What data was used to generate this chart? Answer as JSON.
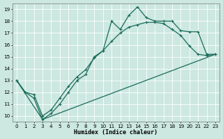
{
  "xlabel": "Humidex (Indice chaleur)",
  "xlim": [
    -0.5,
    23.5
  ],
  "ylim": [
    9.5,
    19.5
  ],
  "xticks": [
    0,
    1,
    2,
    3,
    4,
    5,
    6,
    7,
    8,
    9,
    10,
    11,
    12,
    13,
    14,
    15,
    16,
    17,
    18,
    19,
    20,
    21,
    22,
    23
  ],
  "yticks": [
    10,
    11,
    12,
    13,
    14,
    15,
    16,
    17,
    18,
    19
  ],
  "bg_color": "#cce8e0",
  "grid_color": "#aacccc",
  "line_color": "#1a6b5a",
  "line1_x": [
    0,
    1,
    2,
    3,
    4,
    5,
    6,
    7,
    8,
    9,
    10,
    11,
    12,
    13,
    14,
    15,
    16,
    17,
    18,
    19,
    20,
    21,
    22,
    23
  ],
  "line1_y": [
    13,
    12,
    11.5,
    9.7,
    10.2,
    11,
    12,
    13,
    13.5,
    15,
    15.5,
    18,
    17.3,
    18.5,
    19.2,
    18.3,
    18,
    18,
    18,
    17.2,
    17.1,
    17.1,
    15.2,
    15.2
  ],
  "line2_x": [
    0,
    1,
    2,
    3,
    4,
    5,
    6,
    7,
    8,
    9,
    10,
    11,
    12,
    13,
    14,
    15,
    16,
    17,
    18,
    19,
    20,
    21,
    22,
    23
  ],
  "line2_y": [
    13,
    12,
    11.8,
    10.0,
    10.5,
    11.5,
    12.5,
    13.3,
    13.9,
    14.9,
    15.5,
    16.3,
    17.0,
    17.5,
    17.7,
    17.9,
    17.9,
    17.8,
    17.3,
    16.8,
    15.9,
    15.2,
    15.1,
    15.2
  ],
  "line3_x": [
    0,
    3,
    23
  ],
  "line3_y": [
    13,
    9.7,
    15.2
  ],
  "marker_size": 2.5,
  "line_width": 0.9,
  "xlabel_fontsize": 6.0,
  "tick_fontsize": 5.2
}
